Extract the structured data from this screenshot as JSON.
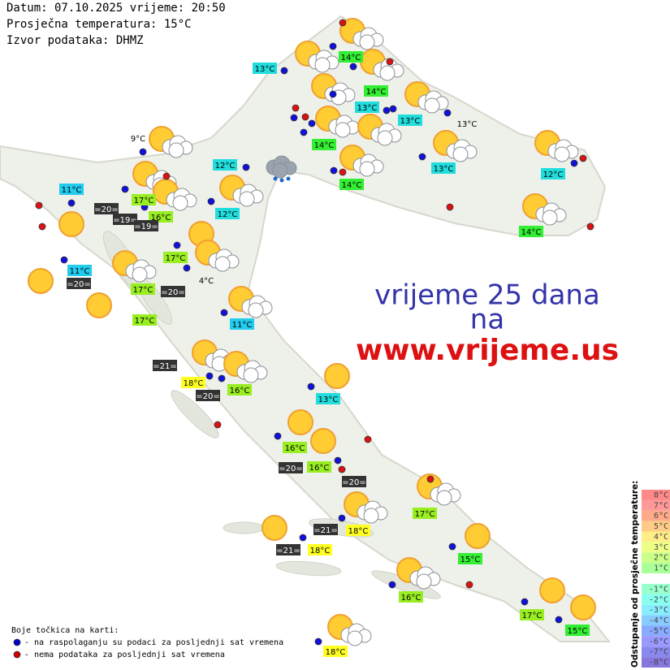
{
  "header": {
    "lines": [
      "Datum: 07.10.2025 vrijeme: 20:50",
      "Prosječna temperatura: 15°C",
      "Izvor podataka: DHMZ"
    ]
  },
  "promo": {
    "lines": [
      "vrijeme 25 dana",
      "na",
      "www.vrijeme.us"
    ]
  },
  "labels": [
    {
      "text": "13°C",
      "color": "#22dddd"
    },
    {
      "text": "14°C",
      "color": "#33ee33"
    },
    {
      "text": "14°C",
      "color": "#33ee33"
    },
    {
      "text": "13°C",
      "color": "#22dddd"
    },
    {
      "text": "13°C",
      "color": "#22dddd"
    },
    {
      "text": "14°C",
      "color": "#33ee33"
    },
    {
      "text": "13°C",
      "color": "none"
    },
    {
      "text": "9°C",
      "color": "none"
    },
    {
      "text": "12°C",
      "color": "#22dddd"
    },
    {
      "text": "14°C",
      "color": "#33ee33"
    },
    {
      "text": "13°C",
      "color": "#22dddd"
    },
    {
      "text": "12°C",
      "color": "#22dddd"
    },
    {
      "text": "11°C",
      "color": "#22ccee"
    },
    {
      "text": "17°C",
      "color": "#99ee22"
    },
    {
      "text": "=20=",
      "color": "#333333"
    },
    {
      "text": "16°C",
      "color": "#99ee22"
    },
    {
      "text": "=19=",
      "color": "#333333"
    },
    {
      "text": "=19=",
      "color": "#333333"
    },
    {
      "text": "12°C",
      "color": "#22dddd"
    },
    {
      "text": "14°C",
      "color": "#33ee33"
    },
    {
      "text": "17°C",
      "color": "#99ee22"
    },
    {
      "text": "11°C",
      "color": "#22ccee"
    },
    {
      "text": "=20=",
      "color": "#333333"
    },
    {
      "text": "17°C",
      "color": "#99ee22"
    },
    {
      "text": "=20=",
      "color": "#333333"
    },
    {
      "text": "4°C",
      "color": "none"
    },
    {
      "text": "17°C",
      "color": "#99ee22"
    },
    {
      "text": "11°C",
      "color": "#22ccee"
    },
    {
      "text": "=21=",
      "color": "#333333"
    },
    {
      "text": "18°C",
      "color": "#ffff22"
    },
    {
      "text": "16°C",
      "color": "#99ee22"
    },
    {
      "text": "=20=",
      "color": "#333333"
    },
    {
      "text": "13°C",
      "color": "#22dddd"
    },
    {
      "text": "16°C",
      "color": "#99ee22"
    },
    {
      "text": "=20=",
      "color": "#333333"
    },
    {
      "text": "16°C",
      "color": "#99ee22"
    },
    {
      "text": "=20=",
      "color": "#333333"
    },
    {
      "text": "17°C",
      "color": "#99ee22"
    },
    {
      "text": "=21=",
      "color": "#333333"
    },
    {
      "text": "18°C",
      "color": "#ffff22"
    },
    {
      "text": "=21=",
      "color": "#333333"
    },
    {
      "text": "18°C",
      "color": "#ffff22"
    },
    {
      "text": "15°C",
      "color": "#33ee33"
    },
    {
      "text": "16°C",
      "color": "#99ee22"
    },
    {
      "text": "17°C",
      "color": "#99ee22"
    },
    {
      "text": "15°C",
      "color": "#33ee33"
    },
    {
      "text": "18°C",
      "color": "#ffff22"
    }
  ],
  "legend": {
    "title": "Boje točkica na karti:",
    "items": [
      {
        "text": "- na raspolaganju su podaci za posljednji sat vremena",
        "color": "#0000cc"
      },
      {
        "text": "- nema podataka za posljednji sat vremena",
        "color": "#cc0000"
      }
    ]
  },
  "scale": {
    "title": "Odstupanje od prosječne temperature:",
    "steps": [
      {
        "label": "8°C",
        "color": "#ff8888"
      },
      {
        "label": "7°C",
        "color": "#ff9999"
      },
      {
        "label": "6°C",
        "color": "#ffaa88"
      },
      {
        "label": "5°C",
        "color": "#ffcc88"
      },
      {
        "label": "4°C",
        "color": "#ffee88"
      },
      {
        "label": "3°C",
        "color": "#eeff88"
      },
      {
        "label": "2°C",
        "color": "#ccff88"
      },
      {
        "label": "1°C",
        "color": "#aaff99"
      },
      {
        "label": null,
        "color": "#ffffff"
      },
      {
        "label": "-1°C",
        "color": "#99ffcc"
      },
      {
        "label": "-2°C",
        "color": "#88ffee"
      },
      {
        "label": "-3°C",
        "color": "#88eeff"
      },
      {
        "label": "-4°C",
        "color": "#88ccff"
      },
      {
        "label": "-5°C",
        "color": "#88aaff"
      },
      {
        "label": "-6°C",
        "color": "#9999ff"
      },
      {
        "label": "-7°C",
        "color": "#8888ee"
      },
      {
        "label": "-8°C",
        "color": "#8877dd"
      }
    ]
  }
}
